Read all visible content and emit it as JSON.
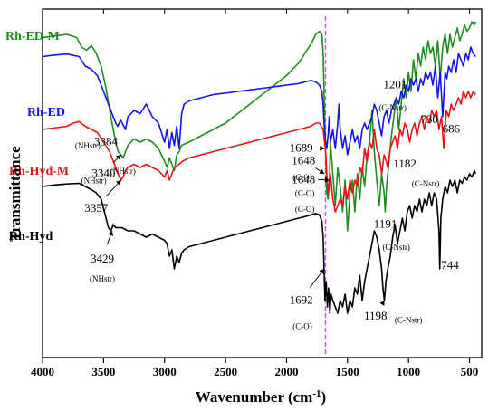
{
  "chart_data": {
    "type": "line",
    "title": "",
    "xlabel": "Wavenumber (cm",
    "xlabel_sup": "-1",
    "xlabel_close": ")",
    "ylabel": "Transmittance",
    "xlim": [
      4000,
      400
    ],
    "x_reversed": true,
    "x_ticks": [
      4000,
      3500,
      3000,
      2500,
      2000,
      1500,
      1000,
      500
    ],
    "y_ticks_shown": false,
    "grid": false,
    "legend": "inline labels at left of each trace",
    "reference_line": {
      "x": 1680,
      "color": "#e040ff",
      "style": "dashed"
    },
    "series": [
      {
        "name": "Rh-ED-M",
        "color": "#1e8c1e",
        "x": [
          4000,
          3900,
          3800,
          3720,
          3680,
          3640,
          3600,
          3560,
          3520,
          3480,
          3440,
          3400,
          3380,
          3357,
          3340,
          3320,
          3300,
          3250,
          3200,
          3150,
          3100,
          3050,
          3000,
          2980,
          2960,
          2940,
          2920,
          2900,
          2880,
          2860,
          2800,
          2700,
          2600,
          2500,
          2400,
          2300,
          2200,
          2100,
          2000,
          1900,
          1850,
          1800,
          1760,
          1730,
          1710,
          1700,
          1690,
          1680,
          1670,
          1660,
          1648,
          1640,
          1620,
          1600,
          1580,
          1560,
          1540,
          1520,
          1500,
          1480,
          1460,
          1440,
          1420,
          1400,
          1380,
          1360,
          1340,
          1320,
          1300,
          1280,
          1260,
          1240,
          1220,
          1200,
          1191,
          1180,
          1160,
          1140,
          1120,
          1100,
          1080,
          1060,
          1040,
          1020,
          1000,
          980,
          960,
          940,
          920,
          900,
          880,
          860,
          840,
          820,
          800,
          780,
          760,
          740,
          720,
          700,
          680,
          660,
          640,
          620,
          600,
          580,
          560,
          540,
          520,
          500,
          480,
          460,
          450
        ],
        "y": [
          91,
          91.5,
          92,
          91,
          88,
          87,
          88.5,
          86,
          82,
          75,
          66,
          58,
          55,
          54,
          53,
          55,
          57,
          59,
          58,
          59,
          58,
          56,
          52,
          50,
          53,
          51,
          49,
          54,
          55,
          57,
          58,
          60,
          62,
          64,
          67,
          70,
          73,
          76,
          79,
          83,
          86,
          89,
          92,
          93,
          92,
          86,
          70,
          55,
          42,
          40,
          46,
          58,
          48,
          38,
          50,
          44,
          36,
          46,
          30,
          42,
          46,
          36,
          48,
          40,
          50,
          44,
          54,
          58,
          68,
          55,
          46,
          38,
          48,
          42,
          36,
          44,
          52,
          60,
          66,
          72,
          62,
          70,
          78,
          72,
          80,
          74,
          84,
          78,
          86,
          82,
          88,
          84,
          90,
          86,
          88,
          82,
          90,
          78,
          88,
          92,
          86,
          92,
          88,
          91,
          94,
          90,
          92,
          95,
          93,
          94,
          96,
          95,
          96
        ]
      },
      {
        "name": "Rh-ED",
        "color": "#1414e6",
        "x": [
          4000,
          3900,
          3800,
          3700,
          3650,
          3600,
          3550,
          3500,
          3450,
          3420,
          3400,
          3384,
          3360,
          3320,
          3300,
          3250,
          3200,
          3150,
          3100,
          3050,
          3000,
          2980,
          2960,
          2940,
          2920,
          2900,
          2880,
          2860,
          2840,
          2800,
          2700,
          2600,
          2500,
          2400,
          2300,
          2200,
          2100,
          2000,
          1900,
          1850,
          1800,
          1760,
          1730,
          1710,
          1700,
          1695,
          1689,
          1680,
          1670,
          1660,
          1650,
          1640,
          1620,
          1600,
          1580,
          1570,
          1560,
          1540,
          1520,
          1500,
          1480,
          1460,
          1440,
          1420,
          1400,
          1380,
          1360,
          1340,
          1320,
          1300,
          1280,
          1260,
          1240,
          1220,
          1201,
          1180,
          1160,
          1140,
          1120,
          1100,
          1080,
          1060,
          1040,
          1020,
          1000,
          980,
          960,
          940,
          920,
          900,
          880,
          860,
          840,
          820,
          800,
          780,
          760,
          740,
          720,
          700,
          686,
          670,
          650,
          630,
          610,
          590,
          570,
          550,
          530,
          510,
          490,
          470,
          450
        ],
        "y": [
          85,
          85.5,
          85.8,
          85,
          82,
          81,
          79,
          74,
          69,
          66,
          64,
          63,
          65,
          62,
          66,
          68,
          67,
          70,
          66,
          64,
          58,
          62,
          56,
          61,
          57,
          63,
          56,
          67,
          70,
          71,
          72,
          73,
          73.5,
          74,
          74.5,
          75,
          75.5,
          76,
          76.5,
          77,
          77.5,
          77,
          76,
          74,
          70,
          66,
          62,
          58,
          56,
          60,
          66,
          58,
          62,
          56,
          64,
          70,
          62,
          56,
          60,
          54,
          58,
          62,
          58,
          60,
          56,
          62,
          64,
          62,
          64,
          66,
          70,
          68,
          64,
          60,
          66,
          68,
          64,
          68,
          70,
          72,
          70,
          74,
          72,
          76,
          74,
          78,
          76,
          78,
          74,
          78,
          76,
          80,
          78,
          80,
          76,
          82,
          72,
          80,
          66,
          80,
          78,
          82,
          80,
          84,
          80,
          86,
          84,
          82,
          86,
          84,
          88,
          86,
          85
        ]
      },
      {
        "name": "Rh-Hyd-M",
        "color": "#e61414",
        "x": [
          4000,
          3900,
          3800,
          3750,
          3700,
          3650,
          3600,
          3550,
          3500,
          3450,
          3420,
          3400,
          3380,
          3357,
          3340,
          3320,
          3300,
          3250,
          3200,
          3150,
          3100,
          3050,
          3000,
          2980,
          2960,
          2920,
          2880,
          2850,
          2800,
          2700,
          2600,
          2500,
          2400,
          2300,
          2200,
          2100,
          2000,
          1900,
          1850,
          1800,
          1760,
          1730,
          1700,
          1680,
          1670,
          1660,
          1648,
          1640,
          1620,
          1600,
          1580,
          1560,
          1540,
          1520,
          1500,
          1480,
          1460,
          1440,
          1420,
          1400,
          1380,
          1360,
          1340,
          1320,
          1300,
          1280,
          1260,
          1240,
          1220,
          1200,
          1182,
          1170,
          1150,
          1130,
          1110,
          1090,
          1070,
          1050,
          1030,
          1010,
          990,
          970,
          950,
          930,
          910,
          890,
          870,
          850,
          830,
          810,
          790,
          770,
          750,
          730,
          710,
          690,
          670,
          650,
          630,
          610,
          590,
          570,
          550,
          530,
          510,
          490,
          470,
          450
        ],
        "y": [
          62,
          62.5,
          63,
          64,
          64.5,
          63,
          62,
          61,
          58,
          55,
          52,
          50,
          48,
          46,
          47,
          49,
          50,
          51,
          50,
          51,
          50,
          49,
          47,
          49,
          46,
          50,
          51,
          52,
          53,
          54,
          55,
          56,
          57,
          58,
          59,
          60,
          61,
          62,
          62.5,
          63,
          64,
          64,
          62,
          55,
          48,
          42,
          46,
          48,
          40,
          36,
          38,
          40,
          38,
          44,
          40,
          46,
          42,
          46,
          44,
          50,
          48,
          56,
          52,
          58,
          56,
          62,
          56,
          54,
          48,
          54,
          52,
          50,
          56,
          58,
          60,
          56,
          62,
          60,
          64,
          62,
          58,
          62,
          64,
          60,
          64,
          66,
          62,
          66,
          64,
          68,
          66,
          68,
          62,
          66,
          56,
          68,
          66,
          70,
          68,
          70,
          72,
          70,
          74,
          72,
          74,
          72,
          74,
          73
        ]
      },
      {
        "name": "Rh-Hyd",
        "color": "#000000",
        "x": [
          4000,
          3900,
          3800,
          3700,
          3650,
          3600,
          3560,
          3520,
          3500,
          3480,
          3460,
          3440,
          3429,
          3420,
          3400,
          3350,
          3300,
          3250,
          3200,
          3150,
          3100,
          3050,
          3000,
          2980,
          2960,
          2940,
          2920,
          2900,
          2880,
          2860,
          2840,
          2800,
          2700,
          2600,
          2500,
          2400,
          2300,
          2200,
          2100,
          2000,
          1900,
          1850,
          1800,
          1760,
          1730,
          1710,
          1700,
          1692,
          1685,
          1675,
          1665,
          1655,
          1645,
          1635,
          1620,
          1600,
          1580,
          1560,
          1540,
          1520,
          1500,
          1480,
          1460,
          1440,
          1420,
          1400,
          1380,
          1360,
          1340,
          1320,
          1300,
          1280,
          1260,
          1240,
          1220,
          1210,
          1198,
          1185,
          1170,
          1150,
          1130,
          1110,
          1090,
          1070,
          1050,
          1030,
          1010,
          990,
          970,
          950,
          930,
          910,
          890,
          870,
          850,
          830,
          810,
          790,
          770,
          750,
          744,
          735,
          720,
          700,
          680,
          660,
          640,
          620,
          600,
          580,
          560,
          540,
          520,
          500,
          480,
          460,
          450
        ],
        "y": [
          44,
          44.5,
          44.8,
          45,
          44,
          43,
          42,
          40,
          37,
          34,
          31,
          30,
          31,
          32,
          31,
          31,
          30,
          30,
          29,
          28,
          29,
          28,
          27,
          26,
          22,
          24,
          18,
          22,
          20,
          23,
          24,
          25,
          26,
          27,
          28,
          29,
          30,
          31,
          32,
          33,
          34,
          34.5,
          35,
          35.5,
          35,
          33,
          28,
          18,
          8,
          14,
          6,
          12,
          4,
          10,
          8,
          6,
          4,
          8,
          6,
          10,
          4,
          8,
          6,
          12,
          10,
          16,
          8,
          14,
          18,
          22,
          26,
          30,
          28,
          24,
          18,
          12,
          8,
          14,
          18,
          22,
          28,
          32,
          26,
          30,
          34,
          30,
          36,
          38,
          34,
          38,
          36,
          40,
          36,
          40,
          38,
          42,
          38,
          42,
          40,
          30,
          18,
          34,
          40,
          44,
          42,
          46,
          44,
          46,
          42,
          46,
          45,
          47,
          46,
          48,
          47,
          49,
          48
        ]
      }
    ],
    "annotations": [
      {
        "series": "Rh-ED-M",
        "value": "3340",
        "sub": "(NHstr)",
        "peak_x": 3357,
        "peak_y": 54,
        "value_x": 3500,
        "value_y": 47,
        "sub_x": 3630,
        "sub_y": 56,
        "arrow": true
      },
      {
        "series": "Rh-ED-M",
        "value": "1648",
        "sub": "(C-O)",
        "peak_x": 1690,
        "peak_y": 48,
        "value_x": 1860,
        "value_y": 51,
        "sub_x": 1850,
        "sub_y": 41,
        "arrow": true
      },
      {
        "series": "Rh-ED-M",
        "value": "1191",
        "sub": "(C-Nstr)",
        "peak_x": 1191,
        "peak_y": 36,
        "value_x": 1190,
        "value_y": 31,
        "sub_x": 1100,
        "sub_y": 24,
        "arrow": false
      },
      {
        "series": "Rh-ED",
        "value": "3384",
        "sub": "(NHstr)",
        "peak_x": 3384,
        "peak_y": 63,
        "value_x": 3480,
        "value_y": 57,
        "sub_x": 3340,
        "sub_y": 48,
        "arrow": false
      },
      {
        "series": "Rh-ED",
        "value": "1689",
        "sub": "(C-O)",
        "peak_x": 1689,
        "peak_y": 56,
        "value_x": 1880,
        "value_y": 55,
        "sub_x": 1870,
        "sub_y": 46,
        "arrow": true
      },
      {
        "series": "Rh-ED",
        "value": "686",
        "sub": "",
        "peak_x": 686,
        "peak_y": 78,
        "value_x": 650,
        "value_y": 61,
        "sub_x": 0,
        "sub_y": 0,
        "arrow": false
      },
      {
        "series": "Rh-Hyd-M",
        "value": "1201",
        "sub": "(C-Nstr)",
        "peak_x": 1201,
        "peak_y": 54,
        "value_x": 1110,
        "value_y": 75,
        "sub_x": 1130,
        "sub_y": 68,
        "arrow": false
      },
      {
        "series": "Rh-Hyd-M",
        "value": "3357",
        "sub": "(NHstr)",
        "peak_x": 3357,
        "peak_y": 46,
        "value_x": 3560,
        "value_y": 36,
        "sub_x": 3580,
        "sub_y": 45,
        "arrow": true
      },
      {
        "series": "Rh-Hyd-M",
        "value": "1648",
        "sub": "(C-O)",
        "peak_x": 1648,
        "peak_y": 46,
        "value_x": 1860,
        "value_y": 45,
        "sub_x": 1850,
        "sub_y": 36,
        "arrow": true
      },
      {
        "series": "Rh-Hyd-M",
        "value": "730",
        "sub": "",
        "peak_x": 730,
        "peak_y": 56,
        "value_x": 830,
        "value_y": 64,
        "sub_x": 0,
        "sub_y": 0,
        "arrow": false
      },
      {
        "series": "Rh-Hyd-M",
        "value": "1182",
        "sub": "(C-Nstr)",
        "peak_x": 1182,
        "peak_y": 50,
        "value_x": 1030,
        "value_y": 50,
        "sub_x": 860,
        "sub_y": 44,
        "arrow": false
      },
      {
        "series": "Rh-Hyd",
        "value": "3429",
        "sub": "(NHstr)",
        "peak_x": 3429,
        "peak_y": 30,
        "value_x": 3510,
        "value_y": 20,
        "sub_x": 3510,
        "sub_y": 14,
        "arrow": true
      },
      {
        "series": "Rh-Hyd",
        "value": "744",
        "sub": "",
        "peak_x": 744,
        "peak_y": 18,
        "value_x": 660,
        "value_y": 18,
        "sub_x": 0,
        "sub_y": 0,
        "arrow": false
      },
      {
        "series": "Rh-Hyd",
        "value": "1692",
        "sub": "(C-O)",
        "peak_x": 1692,
        "peak_y": 18,
        "value_x": 1880,
        "value_y": 7,
        "sub_x": 1870,
        "sub_y": -1,
        "arrow": true
      },
      {
        "series": "Rh-Hyd",
        "value": "1198",
        "sub": "(C-Nstr)",
        "peak_x": 1198,
        "peak_y": 8,
        "value_x": 1270,
        "value_y": 2,
        "sub_x": 1000,
        "sub_y": 1,
        "arrow": true
      }
    ]
  }
}
